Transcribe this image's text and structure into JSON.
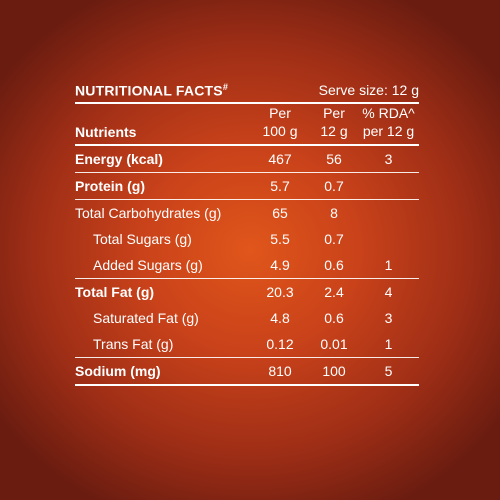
{
  "title": "NUTRITIONAL FACTS",
  "title_mark": "#",
  "serve_size": "Serve size: 12 g",
  "headers": {
    "nutrients": "Nutrients",
    "per100_line1": "Per",
    "per100_line2": "100 g",
    "per12_line1": "Per",
    "per12_line2": "12 g",
    "rda_line1": "% RDA^",
    "rda_line2": "per 12 g"
  },
  "rows": [
    {
      "name": "Energy (kcal)",
      "per100": "467",
      "per12": "56",
      "rda": "3"
    },
    {
      "name": "Protein (g)",
      "per100": "5.7",
      "per12": "0.7",
      "rda": ""
    },
    {
      "name": "Total Carbohydrates (g)",
      "per100": "65",
      "per12": "8",
      "rda": ""
    },
    {
      "name": "Total Sugars (g)",
      "per100": "5.5",
      "per12": "0.7",
      "rda": ""
    },
    {
      "name": "Added Sugars (g)",
      "per100": "4.9",
      "per12": "0.6",
      "rda": "1"
    },
    {
      "name": "Total Fat (g)",
      "per100": "20.3",
      "per12": "2.4",
      "rda": "4"
    },
    {
      "name": "Saturated Fat (g)",
      "per100": "4.8",
      "per12": "0.6",
      "rda": "3"
    },
    {
      "name": "Trans Fat (g)",
      "per100": "0.12",
      "per12": "0.01",
      "rda": "1"
    },
    {
      "name": "Sodium (mg)",
      "per100": "810",
      "per12": "100",
      "rda": "5"
    }
  ]
}
